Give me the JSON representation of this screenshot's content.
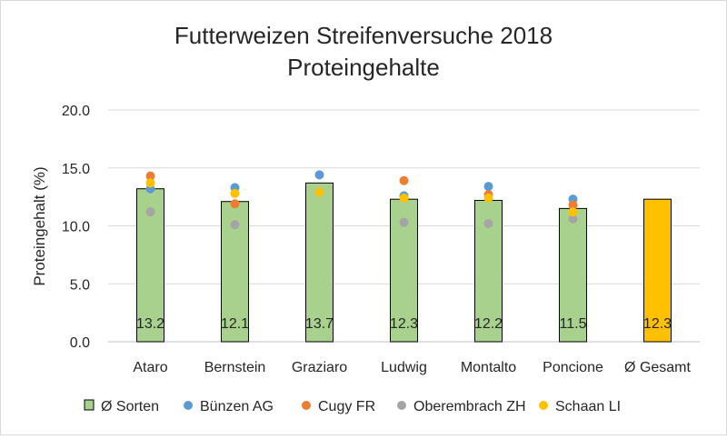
{
  "chart_data": {
    "type": "bar",
    "title": "Futterweizen Streifenversuche 2018",
    "subtitle": "Proteingehalte",
    "xlabel": "",
    "ylabel": "Proteingehalt (%)",
    "ylim": [
      0,
      20
    ],
    "yticks": [
      "0.0",
      "5.0",
      "10.0",
      "15.0",
      "20.0"
    ],
    "grid": true,
    "legend_position": "bottom",
    "categories": [
      "Ataro",
      "Bernstein",
      "Graziaro",
      "Ludwig",
      "Montalto",
      "Poncione",
      "Ø Gesamt"
    ],
    "bar_series": {
      "name": "Ø Sorten",
      "values": [
        13.2,
        12.1,
        13.7,
        12.3,
        12.2,
        11.5,
        12.3
      ],
      "labels": [
        "13.2",
        "12.1",
        "13.7",
        "12.3",
        "12.2",
        "11.5",
        "12.3"
      ],
      "color": "#a9d18e",
      "highlight_color": "#ffc000",
      "highlight_index": 6
    },
    "scatter_series": [
      {
        "name": "Bünzen AG",
        "color": "#5b9bd5",
        "values": [
          13.2,
          13.3,
          14.4,
          12.6,
          13.4,
          12.3,
          null
        ]
      },
      {
        "name": "Cugy FR",
        "color": "#ed7d31",
        "values": [
          14.3,
          11.9,
          null,
          13.9,
          12.7,
          11.8,
          null
        ]
      },
      {
        "name": "Oberembrach ZH",
        "color": "#a5a5a5",
        "values": [
          11.2,
          10.1,
          null,
          10.3,
          10.2,
          10.6,
          null
        ]
      },
      {
        "name": "Schaan LI",
        "color": "#ffc000",
        "values": [
          13.7,
          12.8,
          12.9,
          12.4,
          12.4,
          11.2,
          null
        ]
      }
    ]
  }
}
